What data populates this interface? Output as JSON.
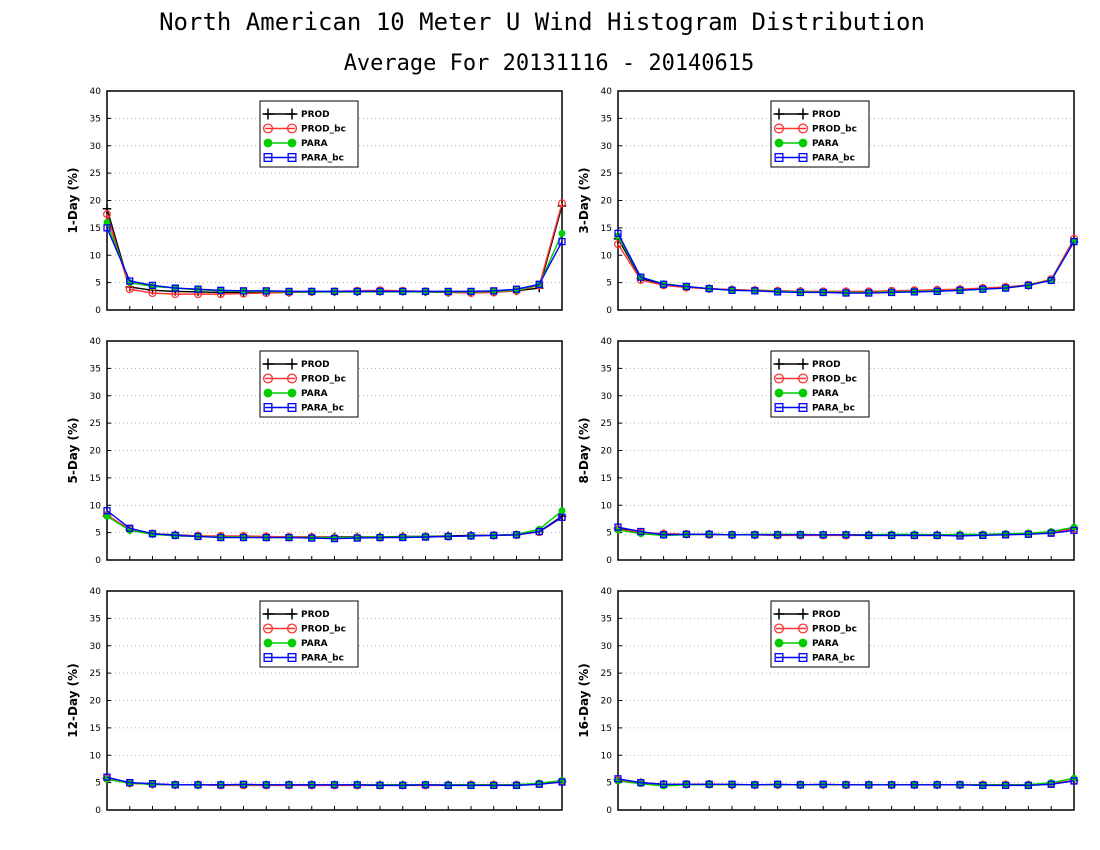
{
  "figure": {
    "title": "North American 10 Meter U Wind Histogram Distribution",
    "subtitle": "Average For 20131116 - 20140615"
  },
  "legend_styles": [
    {
      "name": "PROD",
      "color": "#000000",
      "marker": "plus"
    },
    {
      "name": "PROD_bc",
      "color": "#ff3333",
      "marker": "open-circle"
    },
    {
      "name": "PARA",
      "color": "#00cc00",
      "marker": "filled-circle"
    },
    {
      "name": "PARA_bc",
      "color": "#0000ff",
      "marker": "open-square"
    }
  ],
  "chart_data": [
    {
      "type": "line",
      "ylabel": "1-Day (%)",
      "ylim": [
        0,
        40
      ],
      "yticks": [
        0,
        5,
        10,
        15,
        20,
        25,
        30,
        35,
        40
      ],
      "grid": true,
      "legend": "top-center",
      "x": [
        1,
        2,
        3,
        4,
        5,
        6,
        7,
        8,
        9,
        10,
        11,
        12,
        13,
        14,
        15,
        16,
        17,
        18,
        19,
        20,
        21
      ],
      "series": [
        {
          "name": "PROD",
          "values": [
            18.5,
            4.2,
            3.6,
            3.4,
            3.3,
            3.2,
            3.2,
            3.2,
            3.2,
            3.3,
            3.3,
            3.3,
            3.4,
            3.4,
            3.3,
            3.2,
            3.2,
            3.3,
            3.5,
            4.0,
            19.0
          ]
        },
        {
          "name": "PROD_bc",
          "values": [
            17.5,
            3.8,
            3.1,
            2.9,
            2.9,
            2.9,
            3.0,
            3.1,
            3.2,
            3.3,
            3.4,
            3.5,
            3.6,
            3.5,
            3.4,
            3.2,
            3.1,
            3.2,
            3.5,
            4.5,
            19.5
          ]
        },
        {
          "name": "PARA",
          "values": [
            16.0,
            5.0,
            4.3,
            4.0,
            3.7,
            3.5,
            3.4,
            3.4,
            3.3,
            3.3,
            3.3,
            3.3,
            3.3,
            3.3,
            3.3,
            3.3,
            3.3,
            3.4,
            3.6,
            4.6,
            14.0
          ]
        },
        {
          "name": "PARA_bc",
          "values": [
            15.0,
            5.3,
            4.5,
            4.0,
            3.8,
            3.6,
            3.5,
            3.5,
            3.4,
            3.4,
            3.4,
            3.4,
            3.4,
            3.4,
            3.4,
            3.4,
            3.4,
            3.5,
            3.8,
            4.7,
            12.5
          ]
        }
      ]
    },
    {
      "type": "line",
      "ylabel": "3-Day (%)",
      "ylim": [
        0,
        40
      ],
      "yticks": [
        0,
        5,
        10,
        15,
        20,
        25,
        30,
        35,
        40
      ],
      "grid": true,
      "legend": "top-center",
      "x": [
        1,
        2,
        3,
        4,
        5,
        6,
        7,
        8,
        9,
        10,
        11,
        12,
        13,
        14,
        15,
        16,
        17,
        18,
        19,
        20,
        21
      ],
      "series": [
        {
          "name": "PROD",
          "values": [
            13.0,
            5.8,
            4.6,
            4.2,
            3.9,
            3.7,
            3.6,
            3.5,
            3.4,
            3.3,
            3.3,
            3.3,
            3.4,
            3.5,
            3.6,
            3.7,
            3.9,
            4.1,
            4.5,
            5.5,
            12.5
          ]
        },
        {
          "name": "PROD_bc",
          "values": [
            12.0,
            5.5,
            4.5,
            4.1,
            3.9,
            3.7,
            3.6,
            3.5,
            3.4,
            3.4,
            3.4,
            3.4,
            3.5,
            3.6,
            3.7,
            3.8,
            4.0,
            4.2,
            4.6,
            5.6,
            13.0
          ]
        },
        {
          "name": "PARA",
          "values": [
            13.5,
            6.0,
            4.8,
            4.3,
            3.9,
            3.6,
            3.5,
            3.4,
            3.3,
            3.3,
            3.2,
            3.2,
            3.3,
            3.4,
            3.5,
            3.6,
            3.8,
            4.0,
            4.5,
            5.5,
            12.5
          ]
        },
        {
          "name": "PARA_bc",
          "values": [
            14.0,
            6.0,
            4.7,
            4.3,
            3.9,
            3.6,
            3.5,
            3.3,
            3.2,
            3.2,
            3.1,
            3.1,
            3.2,
            3.3,
            3.4,
            3.6,
            3.8,
            4.0,
            4.5,
            5.4,
            12.5
          ]
        }
      ]
    },
    {
      "type": "line",
      "ylabel": "5-Day (%)",
      "ylim": [
        0,
        40
      ],
      "yticks": [
        0,
        5,
        10,
        15,
        20,
        25,
        30,
        35,
        40
      ],
      "grid": true,
      "legend": "top-center",
      "x": [
        1,
        2,
        3,
        4,
        5,
        6,
        7,
        8,
        9,
        10,
        11,
        12,
        13,
        14,
        15,
        16,
        17,
        18,
        19,
        20,
        21
      ],
      "series": [
        {
          "name": "PROD",
          "values": [
            8.0,
            5.5,
            4.8,
            4.6,
            4.4,
            4.3,
            4.2,
            4.2,
            4.2,
            4.2,
            4.2,
            4.2,
            4.2,
            4.3,
            4.3,
            4.4,
            4.5,
            4.5,
            4.6,
            5.2,
            8.0
          ]
        },
        {
          "name": "PROD_bc",
          "values": [
            8.2,
            5.6,
            4.8,
            4.5,
            4.4,
            4.4,
            4.4,
            4.3,
            4.2,
            4.2,
            4.1,
            4.1,
            4.1,
            4.2,
            4.2,
            4.3,
            4.4,
            4.5,
            4.6,
            5.1,
            7.8
          ]
        },
        {
          "name": "PARA",
          "values": [
            8.0,
            5.4,
            4.7,
            4.4,
            4.3,
            4.2,
            4.2,
            4.1,
            4.1,
            4.1,
            4.1,
            4.1,
            4.2,
            4.2,
            4.3,
            4.3,
            4.4,
            4.5,
            4.7,
            5.6,
            9.0
          ]
        },
        {
          "name": "PARA_bc",
          "values": [
            9.0,
            5.8,
            4.8,
            4.5,
            4.3,
            4.1,
            4.1,
            4.1,
            4.1,
            4.0,
            3.9,
            4.0,
            4.1,
            4.1,
            4.2,
            4.3,
            4.4,
            4.5,
            4.6,
            5.2,
            7.8
          ]
        }
      ]
    },
    {
      "type": "line",
      "ylabel": "8-Day (%)",
      "ylim": [
        0,
        40
      ],
      "yticks": [
        0,
        5,
        10,
        15,
        20,
        25,
        30,
        35,
        40
      ],
      "grid": true,
      "legend": "top-center",
      "x": [
        1,
        2,
        3,
        4,
        5,
        6,
        7,
        8,
        9,
        10,
        11,
        12,
        13,
        14,
        15,
        16,
        17,
        18,
        19,
        20,
        21
      ],
      "series": [
        {
          "name": "PROD",
          "values": [
            5.8,
            5.0,
            4.8,
            4.7,
            4.7,
            4.6,
            4.6,
            4.6,
            4.6,
            4.6,
            4.6,
            4.6,
            4.6,
            4.6,
            4.6,
            4.6,
            4.6,
            4.7,
            4.8,
            5.0,
            5.8
          ]
        },
        {
          "name": "PROD_bc",
          "values": [
            5.6,
            5.0,
            4.8,
            4.7,
            4.6,
            4.6,
            4.6,
            4.5,
            4.5,
            4.5,
            4.5,
            4.5,
            4.5,
            4.5,
            4.5,
            4.5,
            4.6,
            4.7,
            4.8,
            5.0,
            5.7
          ]
        },
        {
          "name": "PARA",
          "values": [
            5.5,
            4.8,
            4.5,
            4.6,
            4.7,
            4.6,
            4.7,
            4.7,
            4.7,
            4.6,
            4.6,
            4.6,
            4.7,
            4.7,
            4.6,
            4.7,
            4.7,
            4.8,
            4.9,
            5.2,
            6.0
          ]
        },
        {
          "name": "PARA_bc",
          "values": [
            6.0,
            5.2,
            4.6,
            4.7,
            4.7,
            4.6,
            4.6,
            4.6,
            4.6,
            4.6,
            4.6,
            4.5,
            4.5,
            4.5,
            4.5,
            4.4,
            4.5,
            4.6,
            4.7,
            4.9,
            5.4
          ]
        }
      ]
    },
    {
      "type": "line",
      "ylabel": "12-Day (%)",
      "ylim": [
        0,
        40
      ],
      "yticks": [
        0,
        5,
        10,
        15,
        20,
        25,
        30,
        35,
        40
      ],
      "grid": true,
      "legend": "top-center",
      "x": [
        1,
        2,
        3,
        4,
        5,
        6,
        7,
        8,
        9,
        10,
        11,
        12,
        13,
        14,
        15,
        16,
        17,
        18,
        19,
        20,
        21
      ],
      "series": [
        {
          "name": "PROD",
          "values": [
            5.8,
            4.9,
            4.7,
            4.6,
            4.6,
            4.6,
            4.6,
            4.6,
            4.6,
            4.6,
            4.6,
            4.6,
            4.6,
            4.6,
            4.6,
            4.6,
            4.6,
            4.6,
            4.6,
            4.8,
            5.2
          ]
        },
        {
          "name": "PROD_bc",
          "values": [
            5.7,
            4.9,
            4.7,
            4.6,
            4.6,
            4.5,
            4.5,
            4.5,
            4.5,
            4.5,
            4.5,
            4.5,
            4.5,
            4.5,
            4.5,
            4.5,
            4.6,
            4.6,
            4.6,
            4.8,
            5.3
          ]
        },
        {
          "name": "PARA",
          "values": [
            5.6,
            4.9,
            4.7,
            4.6,
            4.6,
            4.6,
            4.6,
            4.6,
            4.6,
            4.6,
            4.6,
            4.6,
            4.6,
            4.6,
            4.6,
            4.6,
            4.6,
            4.6,
            4.6,
            4.9,
            5.4
          ]
        },
        {
          "name": "PARA_bc",
          "values": [
            6.0,
            5.0,
            4.8,
            4.6,
            4.6,
            4.6,
            4.7,
            4.6,
            4.6,
            4.6,
            4.6,
            4.6,
            4.5,
            4.5,
            4.6,
            4.5,
            4.5,
            4.5,
            4.5,
            4.7,
            5.1
          ]
        }
      ]
    },
    {
      "type": "line",
      "ylabel": "16-Day (%)",
      "ylim": [
        0,
        40
      ],
      "yticks": [
        0,
        5,
        10,
        15,
        20,
        25,
        30,
        35,
        40
      ],
      "grid": true,
      "legend": "top-center",
      "x": [
        1,
        2,
        3,
        4,
        5,
        6,
        7,
        8,
        9,
        10,
        11,
        12,
        13,
        14,
        15,
        16,
        17,
        18,
        19,
        20,
        21
      ],
      "series": [
        {
          "name": "PROD",
          "values": [
            5.5,
            5.0,
            4.7,
            4.7,
            4.7,
            4.6,
            4.6,
            4.6,
            4.6,
            4.6,
            4.6,
            4.6,
            4.6,
            4.6,
            4.6,
            4.6,
            4.6,
            4.6,
            4.6,
            4.8,
            5.4
          ]
        },
        {
          "name": "PROD_bc",
          "values": [
            5.4,
            5.0,
            4.7,
            4.7,
            4.7,
            4.6,
            4.6,
            4.6,
            4.6,
            4.6,
            4.6,
            4.6,
            4.6,
            4.6,
            4.6,
            4.6,
            4.6,
            4.6,
            4.6,
            4.8,
            5.4
          ]
        },
        {
          "name": "PARA",
          "values": [
            5.3,
            4.8,
            4.4,
            4.6,
            4.6,
            4.6,
            4.6,
            4.6,
            4.6,
            4.6,
            4.6,
            4.6,
            4.6,
            4.6,
            4.6,
            4.6,
            4.6,
            4.6,
            4.6,
            5.0,
            5.8
          ]
        },
        {
          "name": "PARA_bc",
          "values": [
            5.7,
            5.0,
            4.7,
            4.7,
            4.7,
            4.7,
            4.6,
            4.7,
            4.6,
            4.7,
            4.6,
            4.6,
            4.6,
            4.6,
            4.6,
            4.6,
            4.5,
            4.5,
            4.5,
            4.7,
            5.3
          ]
        }
      ]
    }
  ]
}
